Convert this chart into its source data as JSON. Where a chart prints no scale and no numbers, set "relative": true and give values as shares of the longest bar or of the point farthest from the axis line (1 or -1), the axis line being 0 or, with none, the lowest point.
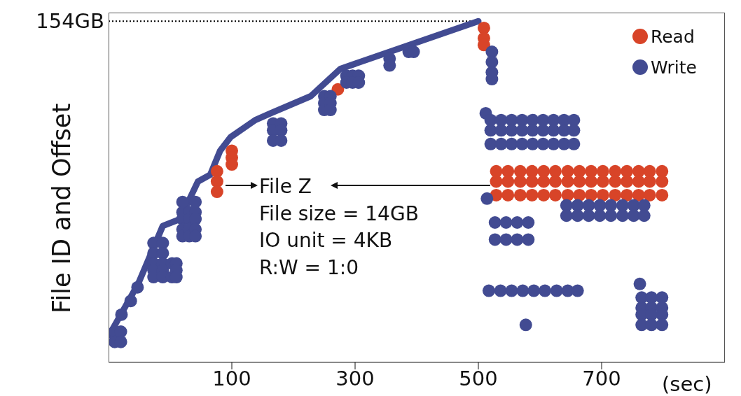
{
  "chart_data": {
    "type": "scatter",
    "relative": true,
    "xlabel": "(sec)",
    "ylabel": "File ID and Offset",
    "xlim": [
      -100,
      900
    ],
    "xticks": [
      100,
      300,
      500,
      700
    ],
    "grid": false,
    "legend": "top right",
    "tick_labels": "x",
    "annotations": [
      "File Z",
      "File size = 14GB",
      "IO unit = 4KB",
      "R:W = 1:0"
    ],
    "ref_lines": [
      {
        "axis": "y",
        "value": 1,
        "label": "154GB",
        "line_style": "dotted",
        "color": "#000000"
      }
    ],
    "series": [
      {
        "type": "line",
        "marker": "none",
        "color": "#424b92",
        "line_style": "solid",
        "x": [
          -99,
          -52,
          -12,
          16,
          45,
          65,
          81,
          98,
          138,
          163,
          228,
          276,
          500
        ],
        "values": [
          0.08,
          0.23,
          0.4,
          0.42,
          0.53,
          0.55,
          0.62,
          0.66,
          0.71,
          0.73,
          0.78,
          0.86,
          1
        ]
      },
      {
        "name": "Read",
        "marker": "circle",
        "color": "#d84428",
        "x": [
          76,
          76,
          76,
          100,
          100,
          100,
          272,
          509,
          509,
          509,
          529,
          548,
          568,
          587,
          606,
          625,
          645,
          664,
          683,
          702,
          722,
          741,
          760,
          778,
          798,
          529,
          548,
          568,
          587,
          606,
          625,
          645,
          664,
          683,
          702,
          722,
          741,
          760,
          778,
          798,
          529,
          548,
          568,
          587,
          606,
          625,
          645,
          664,
          683,
          702,
          722,
          741,
          760,
          778,
          798
        ],
        "values": [
          0.56,
          0.53,
          0.5,
          0.62,
          0.6,
          0.58,
          0.8,
          0.98,
          0.95,
          0.93,
          0.56,
          0.56,
          0.56,
          0.56,
          0.56,
          0.56,
          0.56,
          0.56,
          0.56,
          0.56,
          0.56,
          0.56,
          0.56,
          0.56,
          0.56,
          0.53,
          0.53,
          0.53,
          0.53,
          0.53,
          0.53,
          0.53,
          0.53,
          0.53,
          0.53,
          0.53,
          0.53,
          0.53,
          0.53,
          0.53,
          0.49,
          0.49,
          0.49,
          0.49,
          0.49,
          0.49,
          0.49,
          0.49,
          0.49,
          0.49,
          0.49,
          0.49,
          0.49,
          0.49,
          0.49
        ]
      },
      {
        "name": "Write",
        "marker": "circle",
        "color": "#424b92",
        "x": [
          -90,
          -80,
          -90,
          -80,
          -79,
          -64,
          -53,
          -27,
          -27,
          -27,
          -27,
          -27,
          -12,
          -12,
          -12,
          -12,
          -12,
          3,
          3,
          10,
          10,
          10,
          20,
          20,
          20,
          20,
          20,
          31,
          31,
          31,
          31,
          41,
          41,
          41,
          41,
          41,
          167,
          167,
          167,
          180,
          180,
          180,
          250,
          250,
          250,
          260,
          260,
          260,
          286,
          296,
          306,
          286,
          296,
          306,
          356,
          356,
          387,
          395,
          522,
          522,
          522,
          522,
          512,
          520,
          537,
          554,
          571,
          588,
          605,
          622,
          639,
          655,
          520,
          537,
          554,
          571,
          588,
          605,
          622,
          639,
          655,
          520,
          537,
          554,
          571,
          588,
          605,
          622,
          639,
          655,
          514,
          643,
          661,
          679,
          697,
          715,
          734,
          752,
          769,
          643,
          661,
          679,
          697,
          715,
          734,
          752,
          769,
          527,
          545,
          563,
          581,
          527,
          545,
          563,
          581,
          517,
          536,
          554,
          572,
          590,
          608,
          627,
          645,
          661,
          577,
          765,
          781,
          798,
          765,
          781,
          798,
          765,
          781,
          798,
          765,
          781,
          798,
          762
        ],
        "values": [
          0.09,
          0.09,
          0.06,
          0.06,
          0.14,
          0.18,
          0.22,
          0.35,
          0.32,
          0.29,
          0.27,
          0.25,
          0.35,
          0.32,
          0.29,
          0.27,
          0.25,
          0.29,
          0.25,
          0.29,
          0.27,
          0.25,
          0.47,
          0.44,
          0.42,
          0.39,
          0.37,
          0.44,
          0.42,
          0.39,
          0.37,
          0.47,
          0.44,
          0.42,
          0.39,
          0.37,
          0.7,
          0.68,
          0.65,
          0.7,
          0.68,
          0.65,
          0.78,
          0.76,
          0.74,
          0.78,
          0.76,
          0.74,
          0.84,
          0.84,
          0.84,
          0.82,
          0.82,
          0.82,
          0.89,
          0.87,
          0.91,
          0.91,
          0.91,
          0.88,
          0.85,
          0.83,
          0.73,
          0.71,
          0.71,
          0.71,
          0.71,
          0.71,
          0.71,
          0.71,
          0.71,
          0.71,
          0.68,
          0.68,
          0.68,
          0.68,
          0.68,
          0.68,
          0.68,
          0.68,
          0.68,
          0.64,
          0.64,
          0.64,
          0.64,
          0.64,
          0.64,
          0.64,
          0.64,
          0.64,
          0.48,
          0.46,
          0.46,
          0.46,
          0.46,
          0.46,
          0.46,
          0.46,
          0.46,
          0.43,
          0.43,
          0.43,
          0.43,
          0.43,
          0.43,
          0.43,
          0.43,
          0.41,
          0.41,
          0.41,
          0.41,
          0.36,
          0.36,
          0.36,
          0.36,
          0.21,
          0.21,
          0.21,
          0.21,
          0.21,
          0.21,
          0.21,
          0.21,
          0.21,
          0.11,
          0.19,
          0.19,
          0.19,
          0.16,
          0.16,
          0.16,
          0.14,
          0.14,
          0.14,
          0.11,
          0.11,
          0.11,
          0.23
        ]
      }
    ]
  }
}
